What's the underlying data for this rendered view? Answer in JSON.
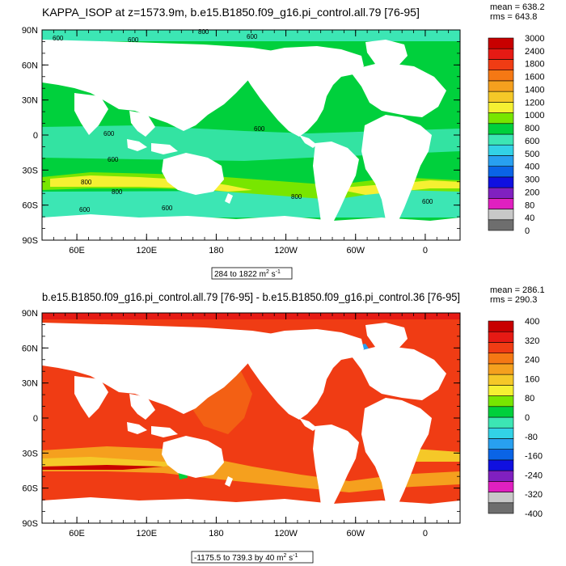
{
  "chart_data": [
    {
      "type": "heatmap",
      "title": "KAPPA_ISOP at z=1573.9m, b.e15.B1850.f09_g16.pi_control.all.79 [76-95]",
      "stats": {
        "mean": "mean = 638.2",
        "rms": "rms = 643.8"
      },
      "range_text": "284 to 1822 m",
      "range_sup": "2",
      "range_suffix": " s",
      "range_sup2": "-1",
      "y_ticks": [
        "90N",
        "60N",
        "30N",
        "0",
        "30S",
        "60S",
        "90S"
      ],
      "lat_values": [
        90,
        60,
        30,
        0,
        -30,
        -60,
        -90
      ],
      "x_ticks": [
        "60E",
        "120E",
        "180",
        "120W",
        "60W",
        "0"
      ],
      "lon_values": [
        60,
        120,
        180,
        240,
        300,
        360
      ],
      "lon_range": [
        30,
        390
      ],
      "lat_range": [
        -90,
        90
      ],
      "colorbar_labels": [
        "0",
        "40",
        "80",
        "200",
        "300",
        "400",
        "500",
        "600",
        "800",
        "1000",
        "1200",
        "1400",
        "1600",
        "1800",
        "2400",
        "3000"
      ],
      "colorbar_colors": [
        "#6e6e6e",
        "#c8c8c8",
        "#e020c0",
        "#8020c0",
        "#1010e0",
        "#0a64e6",
        "#28a0f0",
        "#32d2e6",
        "#3ce6b4",
        "#00d03c",
        "#78e600",
        "#f5f032",
        "#f5c828",
        "#f5a01e",
        "#f57814",
        "#f03c14",
        "#e61a14",
        "#c80000"
      ],
      "contour_labels": [
        "600",
        "600",
        "800",
        "600",
        "800",
        "800",
        "800",
        "600",
        "600",
        "600",
        "600",
        "600",
        "600"
      ]
    },
    {
      "type": "heatmap",
      "title": "b.e15.B1850.f09_g16.pi_control.all.79 [76-95] - b.e15.B1850.f09_g16.pi_control.36 [76-95]",
      "stats": {
        "mean": "mean = 286.1",
        "rms": "rms = 290.3"
      },
      "range_text": "-1175.5 to 739.3 by 40 m",
      "range_sup": "2",
      "range_suffix": " s",
      "range_sup2": "-1",
      "y_ticks": [
        "90N",
        "60N",
        "30N",
        "0",
        "30S",
        "60S",
        "90S"
      ],
      "lat_values": [
        90,
        60,
        30,
        0,
        -30,
        -60,
        -90
      ],
      "x_ticks": [
        "60E",
        "120E",
        "180",
        "120W",
        "60W",
        "0"
      ],
      "lon_values": [
        60,
        120,
        180,
        240,
        300,
        360
      ],
      "lon_range": [
        30,
        390
      ],
      "lat_range": [
        -90,
        90
      ],
      "colorbar_labels": [
        "-400",
        "-320",
        "-240",
        "-160",
        "-80",
        "0",
        "80",
        "160",
        "240",
        "320",
        "400"
      ],
      "colorbar_colors": [
        "#6e6e6e",
        "#c8c8c8",
        "#e020c0",
        "#8020c0",
        "#1010e0",
        "#0a64e6",
        "#28a0f0",
        "#32d2e6",
        "#3ce6b4",
        "#00d03c",
        "#78e600",
        "#f5f032",
        "#f5c828",
        "#f5a01e",
        "#f57814",
        "#f03c14",
        "#e61a14",
        "#c80000"
      ]
    }
  ],
  "colors": {
    "land": "#ffffff",
    "ocean1_base": "#00d03c",
    "ocean1_band": "#3ce6b4",
    "ocean1_warm": "#f5f032",
    "ocean1_hot": "#f5a01e",
    "ocean2_base": "#f03c14",
    "ocean2_warm": "#f5a01e",
    "ocean2_light": "#f5c828",
    "ocean2_dark": "#c80000"
  }
}
